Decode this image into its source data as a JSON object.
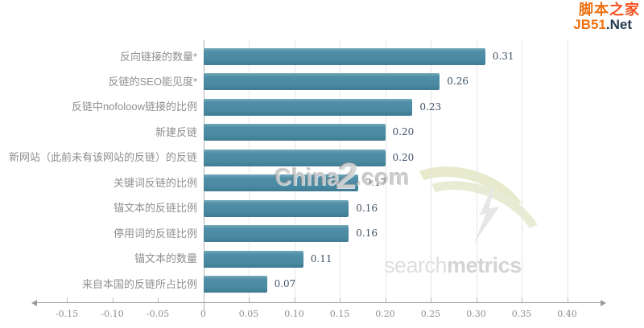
{
  "page": {
    "background": "#ffffff"
  },
  "logo_jb51": {
    "line1_part1": "脚本",
    "line1_part2": "之家",
    "line2_part1": "JB51",
    "line2_part2": ".Net",
    "orange": "#ee7110",
    "red": "#f4511e",
    "dark_navy": "#233a50"
  },
  "watermarks": {
    "chinaz_part1": "China",
    "chinaz_part2": "2",
    "chinaz_part3": ".com",
    "searchmetrics_part1": "search",
    "searchmetrics_part2": "metrics"
  },
  "chart_data": {
    "type": "bar",
    "orientation": "horizontal",
    "title": "",
    "xlabel": "",
    "ylabel": "",
    "categories": [
      "反向链接的数量*",
      "反链的SEO能见度*",
      "反链中nofoloow链接的比例",
      "新建反链",
      "新网站（此前未有该网站的反链）的反链",
      "关键词反链的比例",
      "锚文本的反链比例",
      "停用词的反链比例",
      "锚文本的数量",
      "来自本国的反链所占比例"
    ],
    "values": [
      0.31,
      0.26,
      0.23,
      0.2,
      0.2,
      0.17,
      0.16,
      0.16,
      0.11,
      0.07
    ],
    "value_labels": [
      "0.31",
      "0.26",
      "0.23",
      "0.20",
      "0.20",
      "0.17",
      "0.16",
      "0.16",
      "0.11",
      "0.07"
    ],
    "xlim": [
      -0.15,
      0.44
    ],
    "x_tick_values": [
      -0.15,
      -0.1,
      -0.05,
      0,
      0.05,
      0.1,
      0.15,
      0.2,
      0.25,
      0.3,
      0.35,
      0.4
    ],
    "x_tick_labels": [
      "-0.15",
      "-0.10",
      "-0.05",
      "0",
      "0.05",
      "0.10",
      "0.15",
      "0.20",
      "0.25",
      "0.30",
      "0.35",
      "0.40"
    ],
    "grid": "vertical gridlines at positive ticks only",
    "legend_position": "none",
    "bar_color": "#4a89a1",
    "value_label_color": "#3f5268",
    "category_label_color": "#8f8f8f",
    "gridline_color": "#e4e4e4",
    "axis_color": "#9a9a9a"
  }
}
